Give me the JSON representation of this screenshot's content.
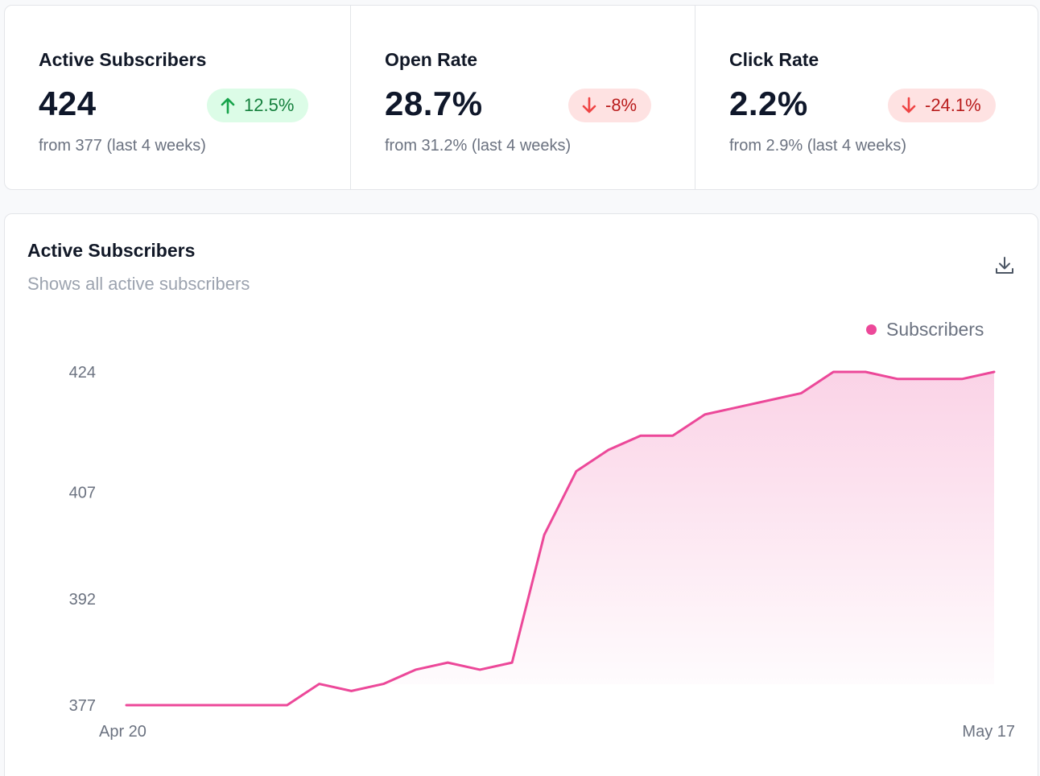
{
  "stats": [
    {
      "label": "Active Subscribers",
      "value": "424",
      "change": "12.5%",
      "direction": "up",
      "from": "from 377 (last 4 weeks)"
    },
    {
      "label": "Open Rate",
      "value": "28.7%",
      "change": "-8%",
      "direction": "down",
      "from": "from 31.2% (last 4 weeks)"
    },
    {
      "label": "Click Rate",
      "value": "2.2%",
      "change": "-24.1%",
      "direction": "down",
      "from": "from 2.9% (last 4 weeks)"
    }
  ],
  "chart": {
    "title": "Active Subscribers",
    "subtitle": "Shows all active subscribers",
    "download_icon": "download-icon",
    "legend_label": "Subscribers"
  },
  "colors": {
    "accent": "#ec4899",
    "up_bg": "#dcfce7",
    "up_fg": "#15803d",
    "down_bg": "#fee2e2",
    "down_fg": "#b91c1c"
  },
  "chart_data": {
    "type": "area",
    "title": "Active Subscribers",
    "subtitle": "Shows all active subscribers",
    "xlabel": "",
    "ylabel": "",
    "x_tick_labels": [
      "Apr 20",
      "May 17"
    ],
    "y_ticks": [
      377,
      392,
      407,
      424
    ],
    "ylim": [
      377,
      424
    ],
    "grid": false,
    "legend": "top-right",
    "series": [
      {
        "name": "Subscribers",
        "color": "#ec4899",
        "values": [
          377,
          377,
          377,
          377,
          377,
          377,
          380,
          379,
          380,
          382,
          383,
          382,
          383,
          401,
          410,
          413,
          415,
          415,
          418,
          419,
          420,
          421,
          424,
          424,
          423,
          423,
          423,
          424
        ]
      }
    ]
  }
}
